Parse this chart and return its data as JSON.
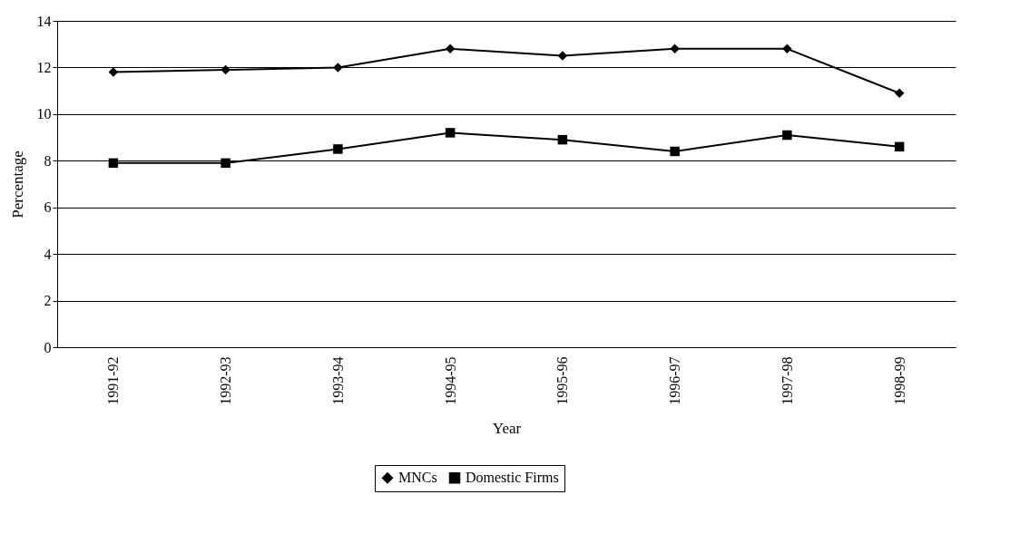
{
  "chart_data": {
    "type": "line",
    "xlabel": "Year",
    "ylabel": "Percentage",
    "categories": [
      "1991-92",
      "1992-93",
      "1993-94",
      "1994-95",
      "1995-96",
      "1996-97",
      "1997-98",
      "1998-99"
    ],
    "series": [
      {
        "name": "MNCs",
        "color": "#000000",
        "marker": "diamond",
        "values": [
          11.8,
          11.9,
          12.0,
          12.8,
          12.5,
          12.8,
          12.8,
          10.9
        ]
      },
      {
        "name": "Domestic Firms",
        "color": "#000000",
        "marker": "square",
        "values": [
          7.9,
          7.9,
          8.5,
          9.2,
          8.9,
          8.4,
          9.1,
          8.6
        ]
      }
    ],
    "ylim": [
      0,
      14
    ],
    "yticks": [
      0,
      2,
      4,
      6,
      8,
      10,
      12,
      14
    ],
    "grid": "y",
    "legend": "bottom",
    "line_style": "solid"
  }
}
